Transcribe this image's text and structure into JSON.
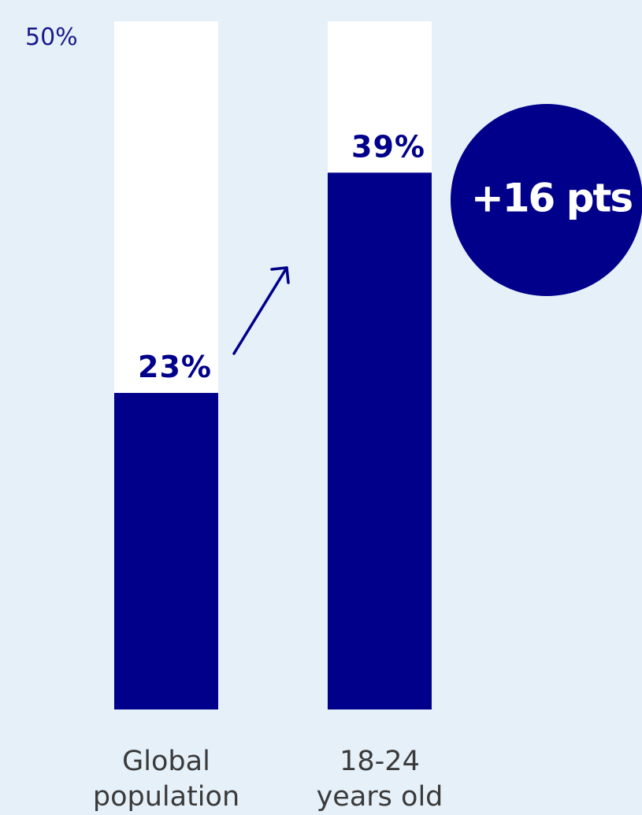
{
  "colors": {
    "background": "#e6f0f9",
    "bar_fill": "#00008b",
    "bar_track": "#ffffff",
    "text_dark": "#00008b",
    "text_axis": "#1a1a8c",
    "category_text": "#3a3a3a",
    "badge_text": "#ffffff"
  },
  "chart_data": {
    "type": "bar",
    "title": "",
    "xlabel": "",
    "ylabel": "",
    "ylim": [
      0,
      50
    ],
    "y_max_label": "50%",
    "categories": [
      [
        "Global",
        "population"
      ],
      [
        "18-24",
        "years old"
      ]
    ],
    "values": [
      23,
      39
    ],
    "value_labels": [
      "23%",
      "39%"
    ],
    "annotation": {
      "badge_text": "+16 pts",
      "arrow": "from first bar to second bar"
    },
    "grid": false,
    "legend": "none"
  }
}
